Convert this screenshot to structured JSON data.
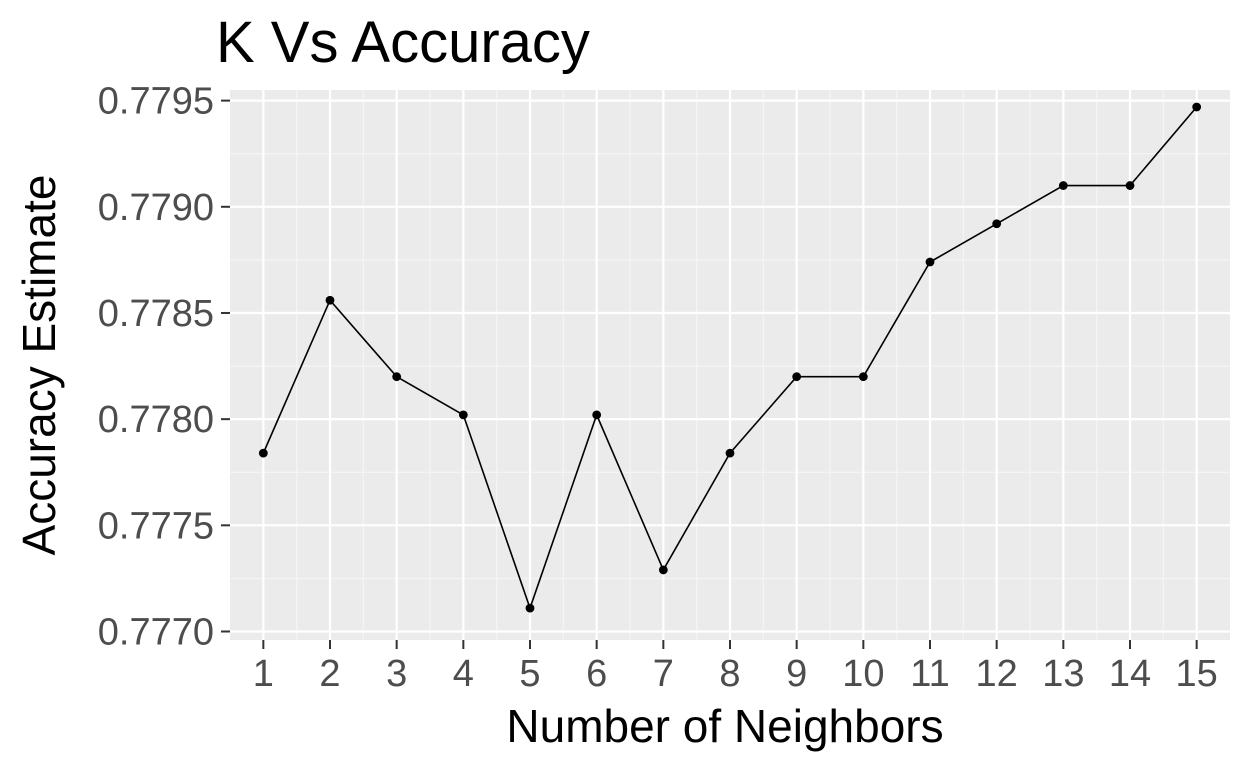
{
  "chart_data": {
    "type": "line",
    "title": "K Vs Accuracy",
    "xlabel": "Number of Neighbors",
    "ylabel": "Accuracy Estimate",
    "x": [
      1,
      2,
      3,
      4,
      5,
      6,
      7,
      8,
      9,
      10,
      11,
      12,
      13,
      14,
      15
    ],
    "x_tick_labels": [
      "1",
      "2",
      "3",
      "4",
      "5",
      "6",
      "7",
      "8",
      "9",
      "10",
      "11",
      "12",
      "13",
      "14",
      "15"
    ],
    "series": [
      {
        "values": [
          0.77784,
          0.77856,
          0.7782,
          0.77802,
          0.77711,
          0.77802,
          0.77729,
          0.77784,
          0.7782,
          0.7782,
          0.77874,
          0.77892,
          0.7791,
          0.7791,
          0.77947
        ]
      }
    ],
    "y_ticks": [
      0.777,
      0.7775,
      0.778,
      0.7785,
      0.779,
      0.7795
    ],
    "y_tick_labels": [
      "0.7770",
      "0.7775",
      "0.7780",
      "0.7785",
      "0.7790",
      "0.7795"
    ],
    "xlim": [
      0.5,
      15.5
    ],
    "ylim": [
      0.77696,
      0.77955
    ],
    "grid": true,
    "colors": {
      "panel_background": "#ebebeb",
      "grid_major": "#ffffff",
      "grid_minor": "#f5f5f5",
      "line": "#000000",
      "points": "#000000",
      "tick_mark": "#333333"
    }
  }
}
